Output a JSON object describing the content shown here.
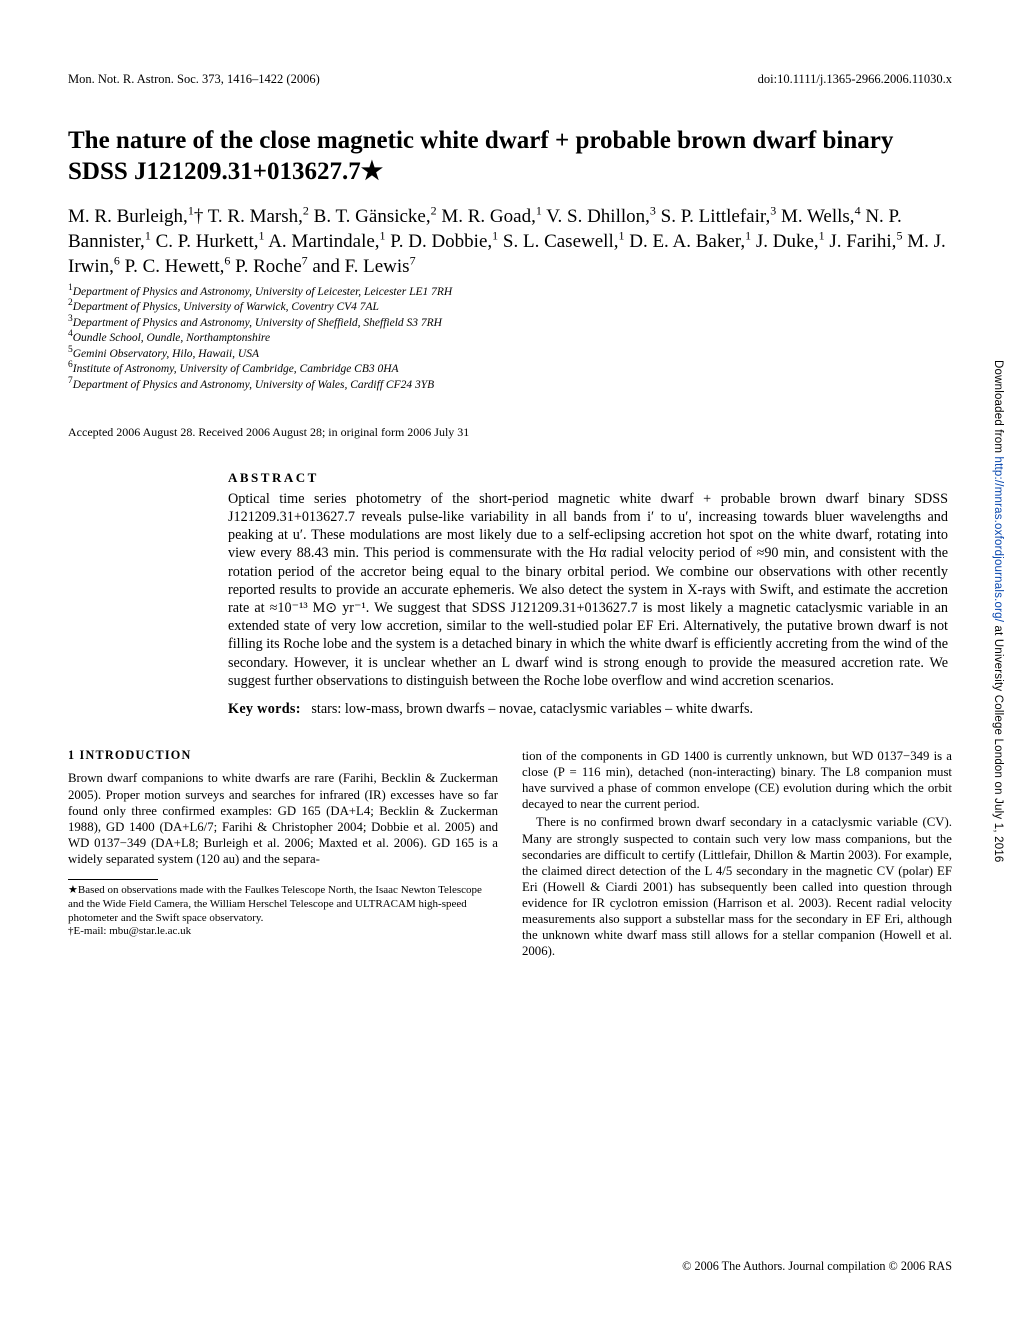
{
  "running_head": {
    "left": "Mon. Not. R. Astron. Soc. 373, 1416–1422 (2006)",
    "right": "doi:10.1111/j.1365-2966.2006.11030.x"
  },
  "title": "The nature of the close magnetic white dwarf + probable brown dwarf binary SDSS J121209.31+013627.7★",
  "authors_html": "M. R. Burleigh,<sup>1</sup>† T. R. Marsh,<sup>2</sup> B. T. Gänsicke,<sup>2</sup> M. R. Goad,<sup>1</sup> V. S. Dhillon,<sup>3</sup> S. P. Littlefair,<sup>3</sup> M. Wells,<sup>4</sup> N. P. Bannister,<sup>1</sup> C. P. Hurkett,<sup>1</sup> A. Martindale,<sup>1</sup> P. D. Dobbie,<sup>1</sup> S. L. Casewell,<sup>1</sup> D. E. A. Baker,<sup>1</sup> J. Duke,<sup>1</sup> J. Farihi,<sup>5</sup> M. J. Irwin,<sup>6</sup> P. C. Hewett,<sup>6</sup> P. Roche<sup>7</sup> and F. Lewis<sup>7</sup>",
  "affiliations": [
    "Department of Physics and Astronomy, University of Leicester, Leicester LE1 7RH",
    "Department of Physics, University of Warwick, Coventry CV4 7AL",
    "Department of Physics and Astronomy, University of Sheffield, Sheffield S3 7RH",
    "Oundle School, Oundle, Northamptonshire",
    "Gemini Observatory, Hilo, Hawaii, USA",
    "Institute of Astronomy, University of Cambridge, Cambridge CB3 0HA",
    "Department of Physics and Astronomy, University of Wales, Cardiff CF24 3YB"
  ],
  "accepted": "Accepted 2006 August 28. Received 2006 August 28; in original form 2006 July 31",
  "abstract_heading": "ABSTRACT",
  "abstract": "Optical time series photometry of the short-period magnetic white dwarf + probable brown dwarf binary SDSS J121209.31+013627.7 reveals pulse-like variability in all bands from i′ to u′, increasing towards bluer wavelengths and peaking at u′. These modulations are most likely due to a self-eclipsing accretion hot spot on the white dwarf, rotating into view every 88.43 min. This period is commensurate with the Hα radial velocity period of ≈90 min, and consistent with the rotation period of the accretor being equal to the binary orbital period. We combine our observations with other recently reported results to provide an accurate ephemeris. We also detect the system in X-rays with Swift, and estimate the accretion rate at ≈10⁻¹³ M⊙ yr⁻¹. We suggest that SDSS J121209.31+013627.7 is most likely a magnetic cataclysmic variable in an extended state of very low accretion, similar to the well-studied polar EF Eri. Alternatively, the putative brown dwarf is not filling its Roche lobe and the system is a detached binary in which the white dwarf is efficiently accreting from the wind of the secondary. However, it is unclear whether an L dwarf wind is strong enough to provide the measured accretion rate. We suggest further observations to distinguish between the Roche lobe overflow and wind accretion scenarios.",
  "keywords_label": "Key words:",
  "keywords": "stars: low-mass, brown dwarfs – novae, cataclysmic variables – white dwarfs.",
  "section1_heading": "1 INTRODUCTION",
  "col_left_p1": "Brown dwarf companions to white dwarfs are rare (Farihi, Becklin & Zuckerman 2005). Proper motion surveys and searches for infrared (IR) excesses have so far found only three confirmed examples: GD 165 (DA+L4; Becklin & Zuckerman 1988), GD 1400 (DA+L6/7; Farihi & Christopher 2004; Dobbie et al. 2005) and WD 0137−349 (DA+L8; Burleigh et al. 2006; Maxted et al. 2006). GD 165 is a widely separated system (120 au) and the separa-",
  "footnote_star": "★Based on observations made with the Faulkes Telescope North, the Isaac Newton Telescope and the Wide Field Camera, the William Herschel Telescope and ULTRACAM high-speed photometer and the Swift space observatory.",
  "footnote_dagger": "†E-mail: mbu@star.le.ac.uk",
  "col_right_p1": "tion of the components in GD 1400 is currently unknown, but WD 0137−349 is a close (P = 116 min), detached (non-interacting) binary. The L8 companion must have survived a phase of common envelope (CE) evolution during which the orbit decayed to near the current period.",
  "col_right_p2": "There is no confirmed brown dwarf secondary in a cataclysmic variable (CV). Many are strongly suspected to contain such very low mass companions, but the secondaries are difficult to certify (Littlefair, Dhillon & Martin 2003). For example, the claimed direct detection of the L 4/5 secondary in the magnetic CV (polar) EF Eri (Howell & Ciardi 2001) has subsequently been called into question through evidence for IR cyclotron emission (Harrison et al. 2003). Recent radial velocity measurements also support a substellar mass for the secondary in EF Eri, although the unknown white dwarf mass still allows for a stellar companion (Howell et al. 2006).",
  "footer": "© 2006 The Authors. Journal compilation © 2006 RAS",
  "sidebar_prefix": "Downloaded from ",
  "sidebar_link_text": "http://mnras.oxfordjournals.org/",
  "sidebar_suffix": " at University College London on July 1, 2016"
}
